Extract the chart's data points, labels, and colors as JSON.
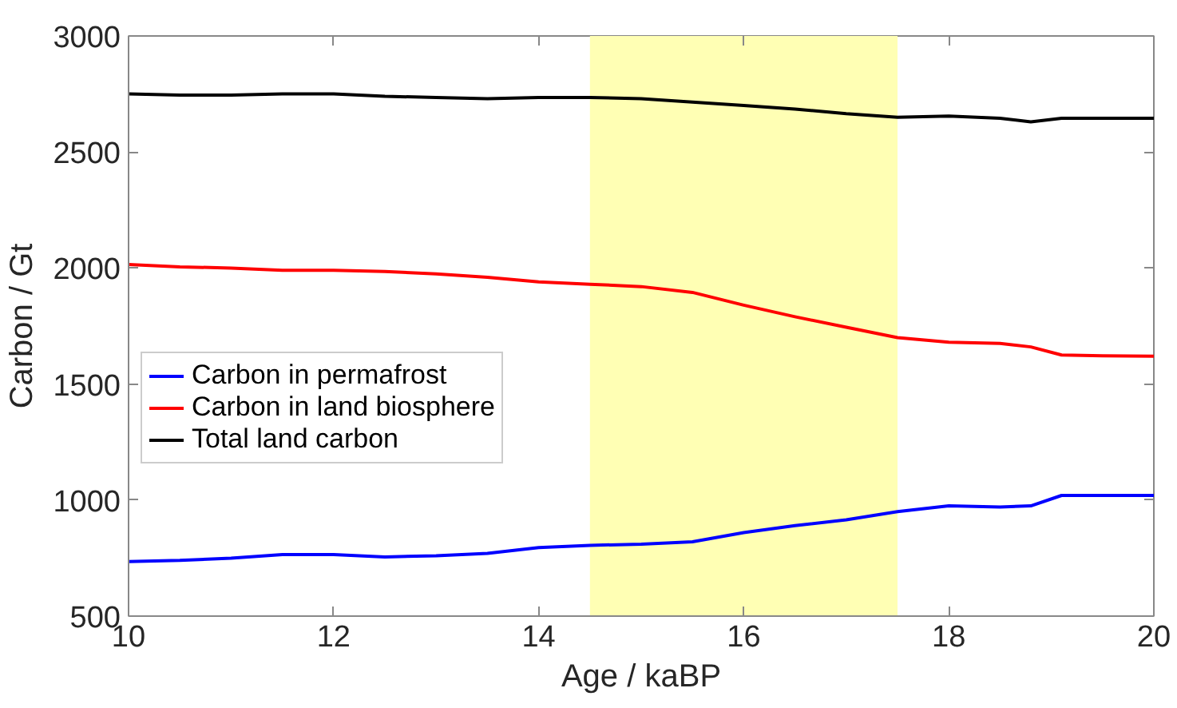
{
  "chart_data": {
    "type": "line",
    "xlabel": "Age / kaBP",
    "ylabel": "Carbon / Gt",
    "x": [
      10,
      10.5,
      11,
      11.5,
      12,
      12.5,
      13,
      13.5,
      14,
      14.5,
      15,
      15.5,
      16,
      16.5,
      17,
      17.5,
      18,
      18.5,
      18.8,
      19.1,
      19.5,
      20
    ],
    "series": [
      {
        "name": "Carbon in permafrost",
        "color": "#0000ff",
        "values": [
          735,
          740,
          750,
          765,
          765,
          755,
          760,
          770,
          795,
          805,
          810,
          820,
          860,
          890,
          915,
          950,
          975,
          970,
          975,
          1020,
          1020,
          1020
        ]
      },
      {
        "name": "Carbon in land biosphere",
        "color": "#ff0000",
        "values": [
          2015,
          2005,
          2000,
          1990,
          1990,
          1985,
          1975,
          1960,
          1940,
          1930,
          1920,
          1895,
          1840,
          1790,
          1745,
          1700,
          1680,
          1675,
          1660,
          1625,
          1622,
          1620
        ]
      },
      {
        "name": "Total land carbon",
        "color": "#000000",
        "values": [
          2750,
          2745,
          2745,
          2750,
          2750,
          2740,
          2735,
          2730,
          2735,
          2735,
          2730,
          2715,
          2700,
          2685,
          2665,
          2650,
          2655,
          2645,
          2630,
          2645,
          2645,
          2645
        ]
      }
    ],
    "xlim": [
      10,
      20
    ],
    "ylim": [
      500,
      3000
    ],
    "xticks": [
      10,
      12,
      14,
      16,
      18,
      20
    ],
    "yticks": [
      500,
      1000,
      1500,
      2000,
      2500,
      3000
    ],
    "bands": [
      {
        "axis": "x",
        "from": 14.5,
        "to": 17.5,
        "color": "#ffffb4"
      }
    ],
    "grid": false,
    "legend": "left",
    "marker": "none",
    "line_style": "solid"
  }
}
